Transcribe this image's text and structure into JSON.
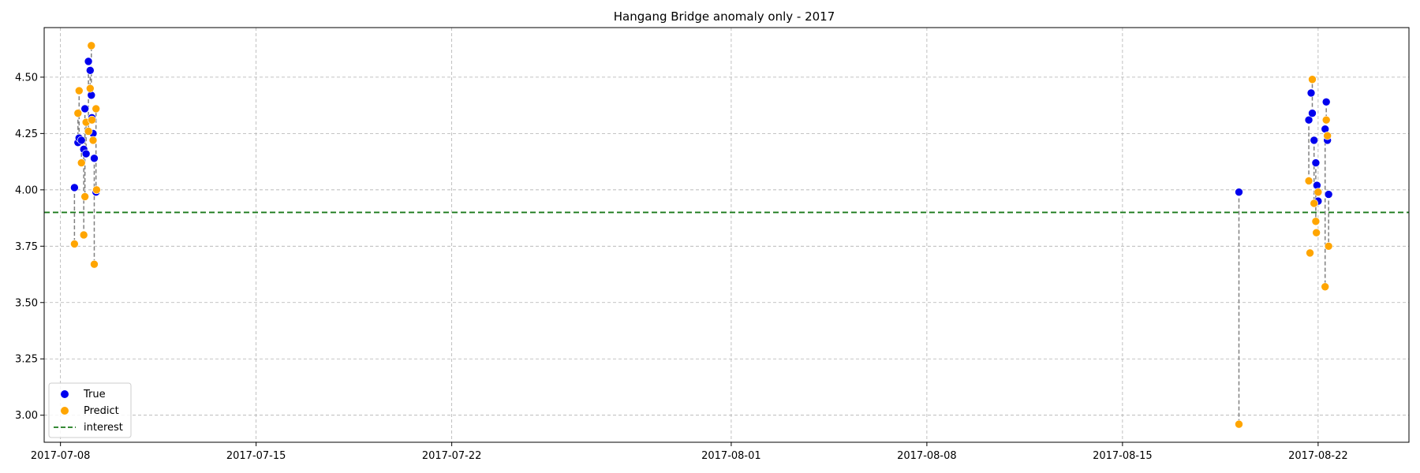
{
  "chart_data": {
    "type": "scatter",
    "title": "Hangang Bridge anomaly only - 2017",
    "xlabel": "",
    "ylabel": "",
    "x_ticks": [
      "2017-07-08",
      "2017-07-15",
      "2017-07-22",
      "2017-08-01",
      "2017-08-08",
      "2017-08-15",
      "2017-08-22"
    ],
    "y_ticks": [
      "3.00",
      "3.25",
      "3.50",
      "3.75",
      "4.00",
      "4.25",
      "4.50"
    ],
    "xlim": [
      "2017-07-07 10:00",
      "2017-08-25 06:00"
    ],
    "ylim": [
      2.88,
      4.72
    ],
    "grid": true,
    "legend_position": "lower-left",
    "interest_level": 3.9,
    "interest_color": "#1a7a1a",
    "connector_color": "#808080",
    "series": [
      {
        "name": "True",
        "color": "#0000ee",
        "points": [
          {
            "x": "2017-07-08 12:00",
            "y": 4.01
          },
          {
            "x": "2017-07-08 15:00",
            "y": 4.21
          },
          {
            "x": "2017-07-08 16:00",
            "y": 4.23
          },
          {
            "x": "2017-07-08 18:00",
            "y": 4.22
          },
          {
            "x": "2017-07-08 20:00",
            "y": 4.18
          },
          {
            "x": "2017-07-08 21:00",
            "y": 4.36
          },
          {
            "x": "2017-07-08 22:00",
            "y": 4.16
          },
          {
            "x": "2017-07-09 00:00",
            "y": 4.57
          },
          {
            "x": "2017-07-09 01:30",
            "y": 4.53
          },
          {
            "x": "2017-07-09 02:30",
            "y": 4.42
          },
          {
            "x": "2017-07-09 03:00",
            "y": 4.32
          },
          {
            "x": "2017-07-09 04:00",
            "y": 4.25
          },
          {
            "x": "2017-07-09 05:00",
            "y": 4.14
          },
          {
            "x": "2017-07-09 06:30",
            "y": 3.99
          },
          {
            "x": "2017-08-19 04:00",
            "y": 3.99
          },
          {
            "x": "2017-08-21 16:00",
            "y": 4.31
          },
          {
            "x": "2017-08-21 18:00",
            "y": 4.43
          },
          {
            "x": "2017-08-21 19:00",
            "y": 4.34
          },
          {
            "x": "2017-08-21 20:30",
            "y": 4.22
          },
          {
            "x": "2017-08-21 22:00",
            "y": 4.12
          },
          {
            "x": "2017-08-21 23:00",
            "y": 4.02
          },
          {
            "x": "2017-08-22 00:00",
            "y": 3.95
          },
          {
            "x": "2017-08-22 06:00",
            "y": 4.27
          },
          {
            "x": "2017-08-22 07:00",
            "y": 4.39
          },
          {
            "x": "2017-08-22 08:00",
            "y": 4.22
          },
          {
            "x": "2017-08-22 09:00",
            "y": 3.98
          }
        ]
      },
      {
        "name": "Predict",
        "color": "#ffa500",
        "points": [
          {
            "x": "2017-07-08 12:00",
            "y": 3.76
          },
          {
            "x": "2017-07-08 15:00",
            "y": 4.34
          },
          {
            "x": "2017-07-08 16:00",
            "y": 4.44
          },
          {
            "x": "2017-07-08 18:00",
            "y": 4.12
          },
          {
            "x": "2017-07-08 20:00",
            "y": 3.8
          },
          {
            "x": "2017-07-08 21:00",
            "y": 3.97
          },
          {
            "x": "2017-07-08 22:00",
            "y": 4.3
          },
          {
            "x": "2017-07-09 00:00",
            "y": 4.26
          },
          {
            "x": "2017-07-09 01:30",
            "y": 4.45
          },
          {
            "x": "2017-07-09 02:30",
            "y": 4.64
          },
          {
            "x": "2017-07-09 03:00",
            "y": 4.31
          },
          {
            "x": "2017-07-09 04:00",
            "y": 4.22
          },
          {
            "x": "2017-07-09 05:00",
            "y": 3.67
          },
          {
            "x": "2017-07-09 06:30",
            "y": 4.36
          },
          {
            "x": "2017-07-09 07:00",
            "y": 4.0
          },
          {
            "x": "2017-08-19 04:00",
            "y": 2.96
          },
          {
            "x": "2017-08-21 16:00",
            "y": 4.04
          },
          {
            "x": "2017-08-21 17:00",
            "y": 3.72
          },
          {
            "x": "2017-08-21 19:00",
            "y": 4.49
          },
          {
            "x": "2017-08-21 20:30",
            "y": 3.94
          },
          {
            "x": "2017-08-21 22:00",
            "y": 3.86
          },
          {
            "x": "2017-08-21 22:30",
            "y": 3.81
          },
          {
            "x": "2017-08-22 00:00",
            "y": 3.99
          },
          {
            "x": "2017-08-22 06:00",
            "y": 3.57
          },
          {
            "x": "2017-08-22 07:00",
            "y": 4.31
          },
          {
            "x": "2017-08-22 08:00",
            "y": 4.24
          },
          {
            "x": "2017-08-22 09:00",
            "y": 3.75
          }
        ]
      }
    ],
    "legend": {
      "entries": [
        {
          "label": "True",
          "marker": "circle",
          "color": "#0000ee"
        },
        {
          "label": "Predict",
          "marker": "circle",
          "color": "#ffa500"
        },
        {
          "label": "interest",
          "marker": "dashed-line",
          "color": "#1a7a1a"
        }
      ]
    }
  }
}
